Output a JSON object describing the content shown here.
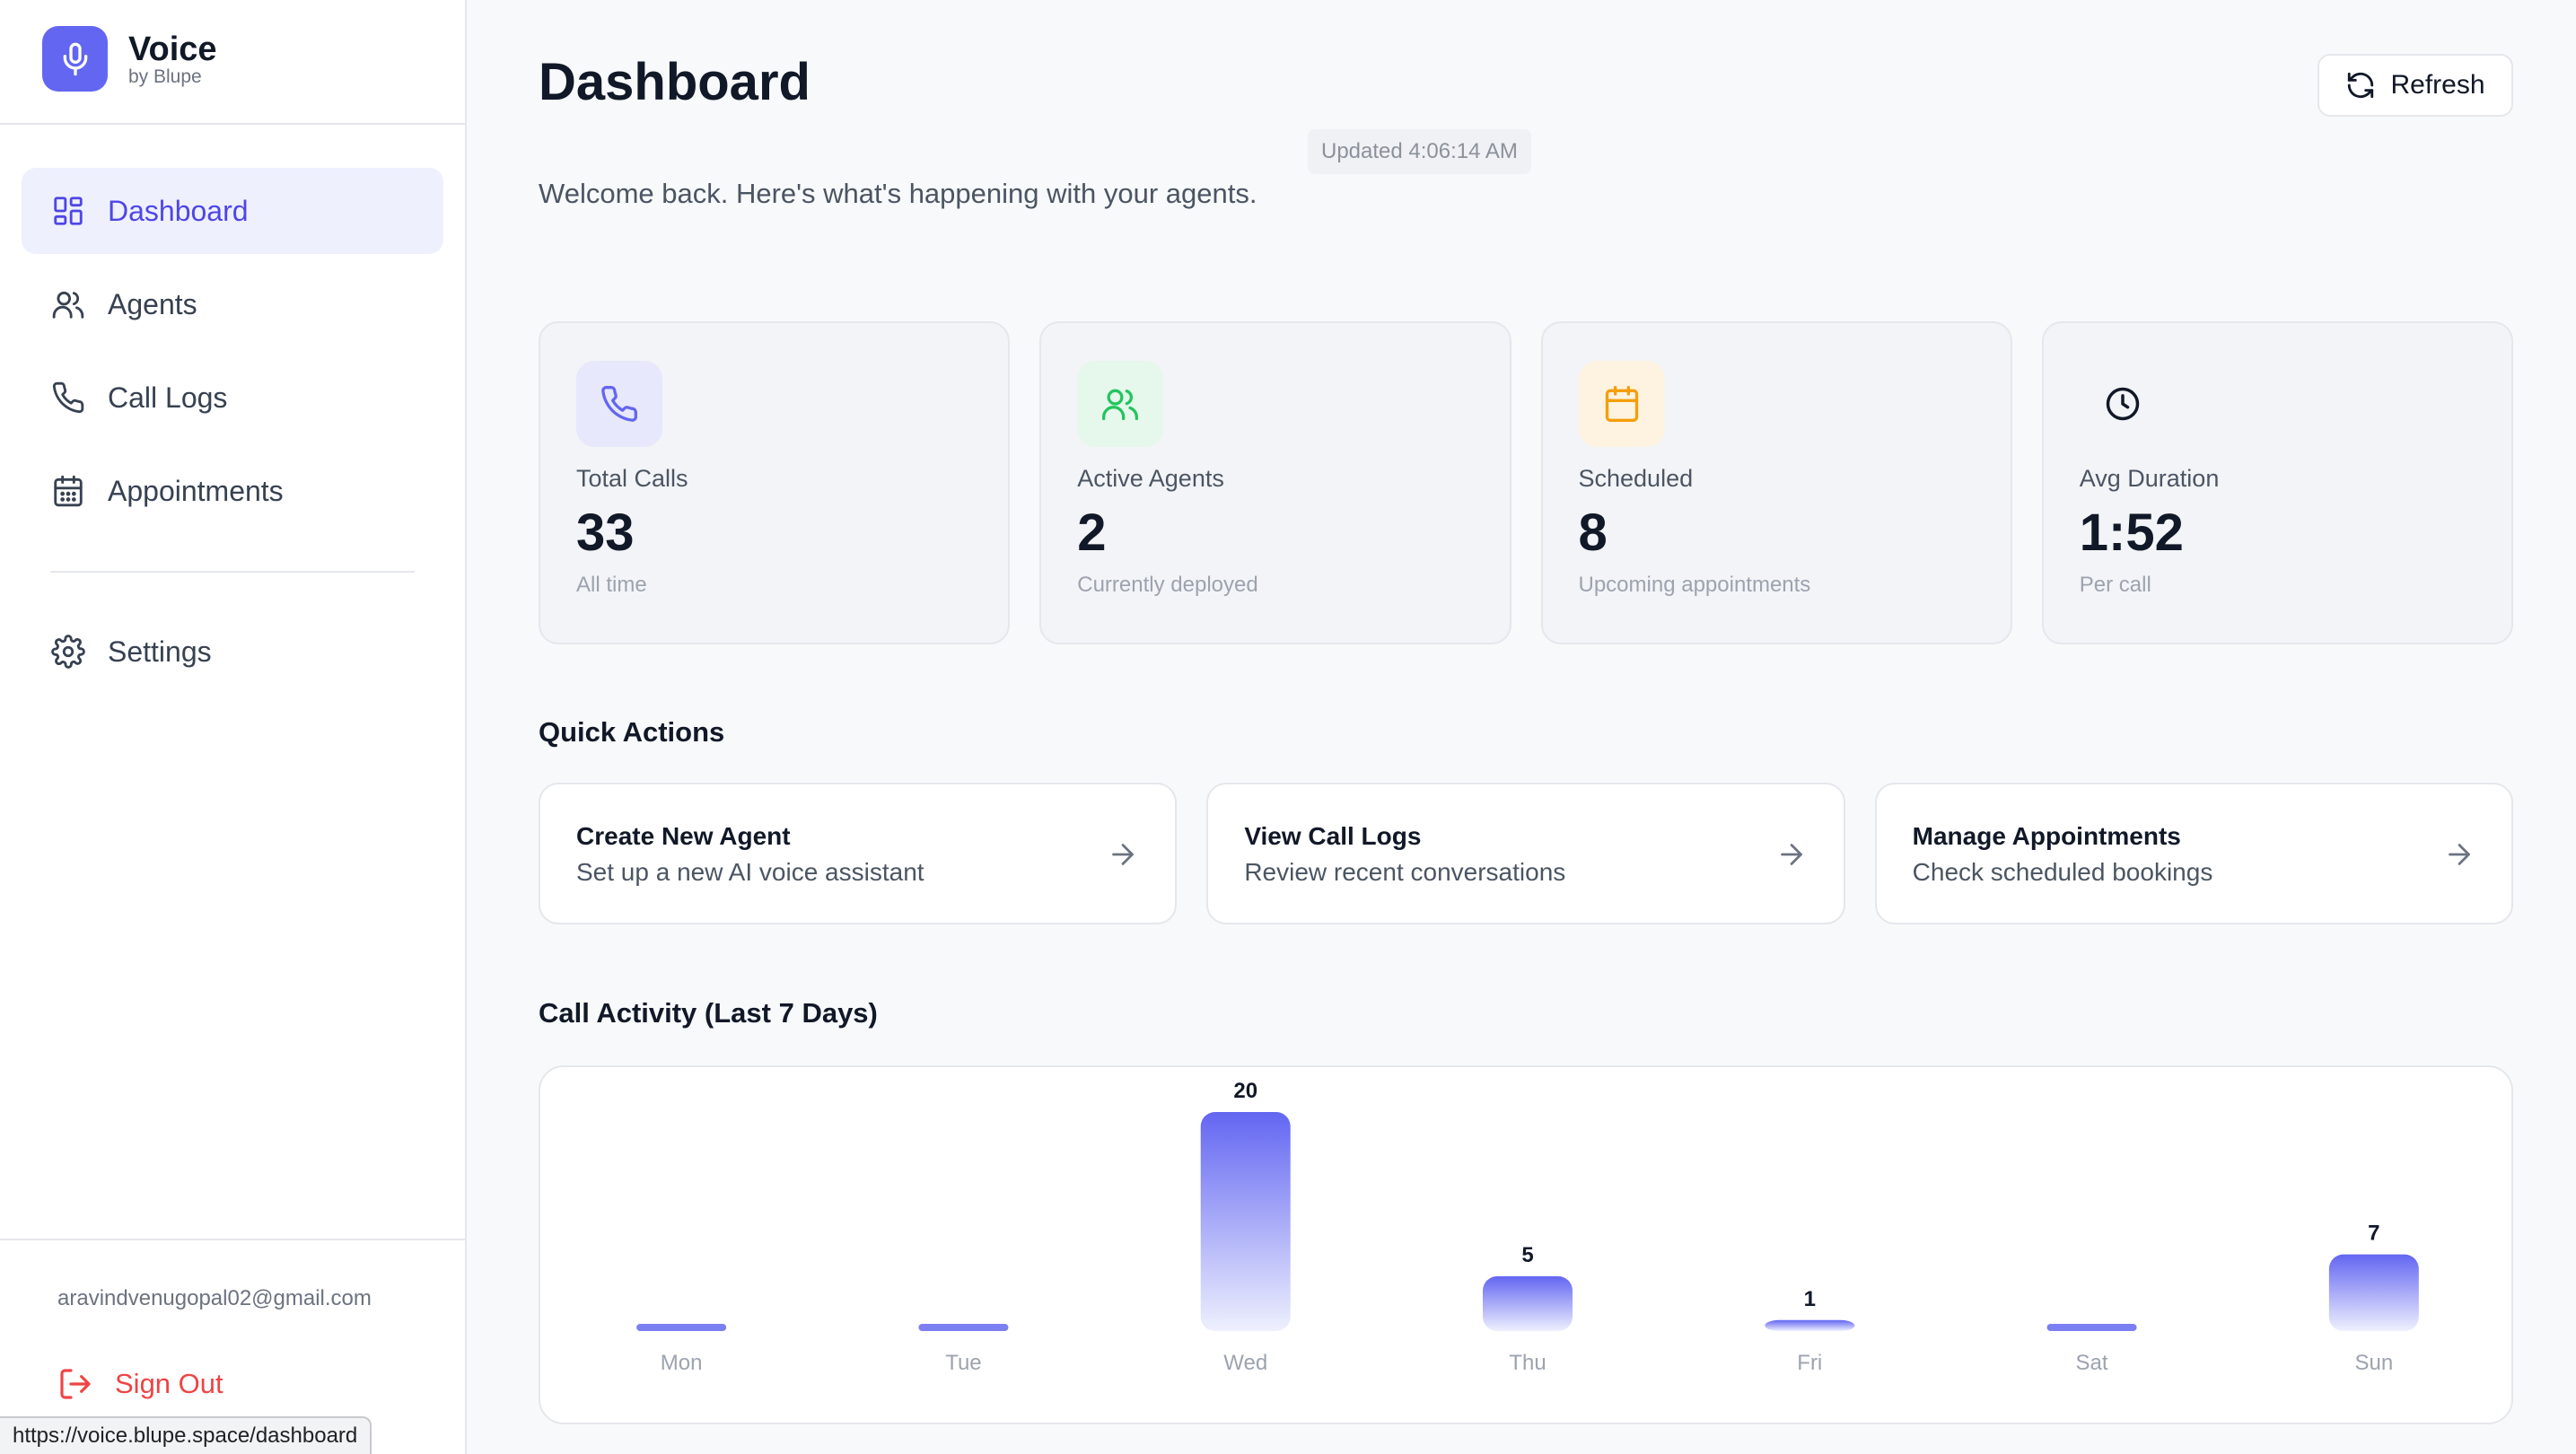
{
  "brand": {
    "name": "Voice",
    "sub": "by Blupe"
  },
  "sidebar": {
    "items": [
      {
        "label": "Dashboard",
        "icon": "dashboard-grid-icon",
        "active": true
      },
      {
        "label": "Agents",
        "icon": "users-icon",
        "active": false
      },
      {
        "label": "Call Logs",
        "icon": "phone-icon",
        "active": false
      },
      {
        "label": "Appointments",
        "icon": "calendar-icon",
        "active": false
      }
    ],
    "settings": {
      "label": "Settings",
      "icon": "gear-icon"
    },
    "user_email": "aravindvenugopal02@gmail.com",
    "sign_out": "Sign Out"
  },
  "status_url": "https://voice.blupe.space/dashboard",
  "header": {
    "title": "Dashboard",
    "refresh_label": "Refresh",
    "updated": "Updated 4:06:14 AM",
    "welcome": "Welcome back. Here's what's happening with your agents."
  },
  "stats": [
    {
      "label": "Total Calls",
      "value": "33",
      "sub": "All time",
      "icon": "phone-icon",
      "color": "#6366f1",
      "bg": "#e7e8fb"
    },
    {
      "label": "Active Agents",
      "value": "2",
      "sub": "Currently deployed",
      "icon": "users-icon",
      "color": "#22c55e",
      "bg": "#e6f7ec"
    },
    {
      "label": "Scheduled",
      "value": "8",
      "sub": "Upcoming appointments",
      "icon": "calendar-icon",
      "color": "#f59e0b",
      "bg": "#fdf3e0"
    },
    {
      "label": "Avg Duration",
      "value": "1:52",
      "sub": "Per call",
      "icon": "clock-icon",
      "color": "#111827",
      "bg": "transparent"
    }
  ],
  "quick_actions": {
    "title": "Quick Actions",
    "items": [
      {
        "title": "Create New Agent",
        "sub": "Set up a new AI voice assistant"
      },
      {
        "title": "View Call Logs",
        "sub": "Review recent conversations"
      },
      {
        "title": "Manage Appointments",
        "sub": "Check scheduled bookings"
      }
    ]
  },
  "activity": {
    "title": "Call Activity (Last 7 Days)"
  },
  "chart_data": {
    "type": "bar",
    "categories": [
      "Mon",
      "Tue",
      "Wed",
      "Thu",
      "Fri",
      "Sat",
      "Sun"
    ],
    "values": [
      0,
      0,
      20,
      5,
      1,
      0,
      7
    ],
    "title": "Call Activity (Last 7 Days)",
    "xlabel": "",
    "ylabel": "",
    "ylim": [
      0,
      20
    ],
    "bar_color": "#6366f1",
    "grid": false
  }
}
